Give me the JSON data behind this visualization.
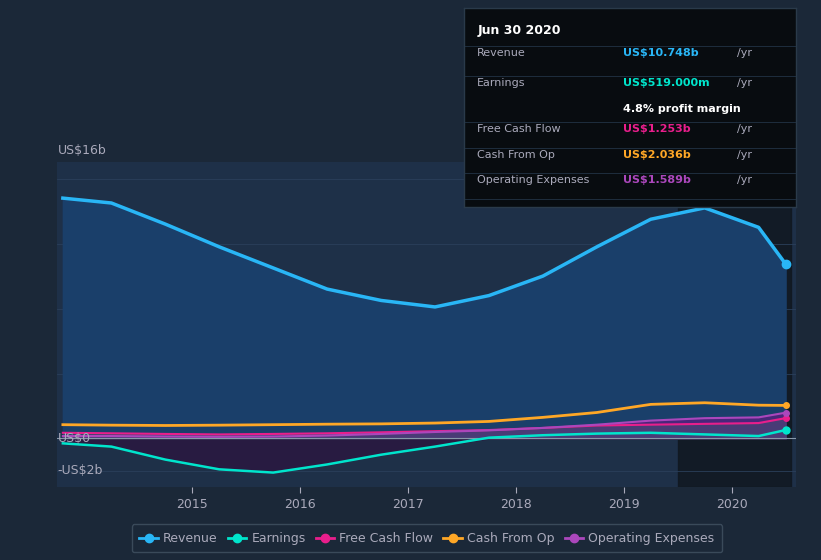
{
  "bg_color": "#1b2838",
  "plot_bg_color": "#1e3048",
  "grid_color": "#2a3f5a",
  "text_color": "#aaaabb",
  "title_color": "#ffffff",
  "years": [
    2013.8,
    2014.25,
    2014.75,
    2015.25,
    2015.75,
    2016.25,
    2016.75,
    2017.25,
    2017.75,
    2018.25,
    2018.75,
    2019.25,
    2019.75,
    2020.25,
    2020.5
  ],
  "revenue": [
    14.8,
    14.5,
    13.2,
    11.8,
    10.5,
    9.2,
    8.5,
    8.1,
    8.8,
    10.0,
    11.8,
    13.5,
    14.2,
    13.0,
    10.748
  ],
  "earnings": [
    -0.3,
    -0.5,
    -1.3,
    -1.9,
    -2.1,
    -1.6,
    -1.0,
    -0.5,
    0.05,
    0.2,
    0.3,
    0.35,
    0.25,
    0.15,
    0.519
  ],
  "free_cash_flow": [
    0.35,
    0.32,
    0.28,
    0.25,
    0.28,
    0.32,
    0.38,
    0.45,
    0.52,
    0.65,
    0.8,
    0.85,
    0.9,
    0.95,
    1.253
  ],
  "cash_from_op": [
    0.85,
    0.82,
    0.8,
    0.82,
    0.85,
    0.88,
    0.9,
    0.95,
    1.05,
    1.3,
    1.6,
    2.1,
    2.2,
    2.05,
    2.036
  ],
  "operating_expenses": [
    0.15,
    0.15,
    0.12,
    0.1,
    0.12,
    0.18,
    0.28,
    0.4,
    0.5,
    0.65,
    0.85,
    1.1,
    1.25,
    1.3,
    1.589
  ],
  "revenue_color": "#29b6f6",
  "earnings_color": "#00e5cc",
  "free_cash_flow_color": "#e91e8c",
  "cash_from_op_color": "#ffa726",
  "operating_expenses_color": "#ab47bc",
  "revenue_fill_color": "#1a3f6a",
  "opex_fill_color": "#5a2080",
  "earnings_neg_fill_color": "#2a1840",
  "earnings_pos_fill_color": "#1a4040",
  "fcf_fill_color": "#4a5a70",
  "highlight_start": 2019.5,
  "highlight_end": 2020.55,
  "highlight_color": "#101820",
  "ylim_min": -3.0,
  "ylim_max": 17.0,
  "ytick_positions": [
    -2,
    0,
    16
  ],
  "ytick_labels": [
    "-US$2b",
    "US$0",
    "US$16b"
  ],
  "xticks": [
    2015,
    2016,
    2017,
    2018,
    2019,
    2020
  ],
  "xmin": 2013.75,
  "xmax": 2020.6,
  "gridlines": [
    -2,
    0,
    4,
    8,
    12,
    16
  ],
  "tooltip_date": "Jun 30 2020",
  "tooltip_revenue_label": "Revenue",
  "tooltip_revenue_value": "US$10.748b",
  "tooltip_earnings_label": "Earnings",
  "tooltip_earnings_value": "US$519.000m",
  "tooltip_margin": "4.8% profit margin",
  "tooltip_fcf_label": "Free Cash Flow",
  "tooltip_fcf_value": "US$1.253b",
  "tooltip_cop_label": "Cash From Op",
  "tooltip_cop_value": "US$2.036b",
  "tooltip_opex_label": "Operating Expenses",
  "tooltip_opex_value": "US$1.589b",
  "legend_items": [
    "Revenue",
    "Earnings",
    "Free Cash Flow",
    "Cash From Op",
    "Operating Expenses"
  ],
  "legend_colors": [
    "#29b6f6",
    "#00e5cc",
    "#e91e8c",
    "#ffa726",
    "#ab47bc"
  ]
}
